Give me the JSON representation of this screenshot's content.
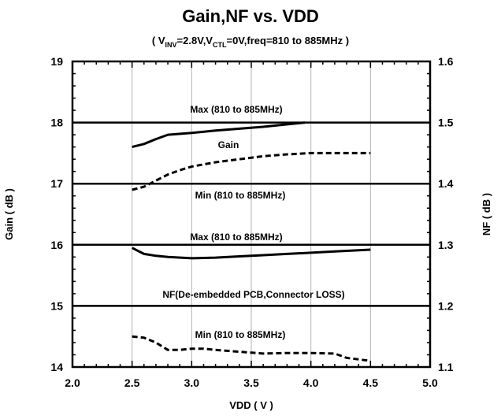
{
  "chart_data": {
    "type": "line",
    "title": "Gain,NF vs. VDD",
    "subtitle": {
      "open": "( V",
      "sub1": "INV",
      "mid": "=2.8V,V",
      "sub2": "CTL",
      "close": "=0V,freq=810 to 885MHz )"
    },
    "xlabel": "VDD ( V )",
    "ylabel_left": "Gain ( dB )",
    "ylabel_right": "NF ( dB )",
    "xlim": [
      2.0,
      5.0
    ],
    "ylim_left": [
      14,
      19
    ],
    "ylim_right": [
      1.1,
      1.6
    ],
    "xticks": [
      "2.0",
      "2.5",
      "3.0",
      "3.5",
      "4.0",
      "4.5",
      "5.0"
    ],
    "yticks_left": [
      "14",
      "15",
      "16",
      "17",
      "18",
      "19"
    ],
    "yticks_right": [
      "1.1",
      "1.2",
      "1.3",
      "1.4",
      "1.5",
      "1.6"
    ],
    "grid": "vertical",
    "annotations": {
      "gain_max": "Max (810 to 885MHz)",
      "gain": "Gain",
      "gain_min": "Min (810 to 885MHz)",
      "nf_max": "Max (810 to 885MHz)",
      "nf": "NF(De-embedded PCB,Connector LOSS)",
      "nf_min": "Min (810 to 885MHz)"
    },
    "reference_lines": [
      {
        "axis": "left",
        "y": 18.0
      },
      {
        "axis": "left",
        "y": 17.0
      },
      {
        "axis": "left",
        "y": 16.0
      },
      {
        "axis": "left",
        "y": 15.0
      }
    ],
    "series": [
      {
        "axis": "left",
        "style": "solid",
        "x": [
          2.5,
          2.6,
          2.7,
          2.8,
          3.0,
          3.2,
          3.4,
          3.6,
          3.8,
          3.95
        ],
        "y": [
          17.6,
          17.65,
          17.73,
          17.8,
          17.83,
          17.87,
          17.9,
          17.93,
          17.97,
          18.0
        ]
      },
      {
        "axis": "left",
        "style": "dashed",
        "x": [
          2.5,
          2.6,
          2.7,
          2.8,
          2.9,
          3.0,
          3.2,
          3.4,
          3.6,
          3.8,
          4.0,
          4.2,
          4.5
        ],
        "y": [
          16.9,
          16.95,
          17.05,
          17.15,
          17.22,
          17.28,
          17.35,
          17.4,
          17.45,
          17.48,
          17.5,
          17.5,
          17.5
        ]
      },
      {
        "axis": "right",
        "style": "solid",
        "x": [
          2.5,
          2.55,
          2.6,
          2.7,
          2.8,
          3.0,
          3.2,
          3.4,
          3.6,
          3.8,
          4.0,
          4.2,
          4.5
        ],
        "y": [
          1.295,
          1.29,
          1.285,
          1.282,
          1.28,
          1.278,
          1.279,
          1.281,
          1.283,
          1.285,
          1.287,
          1.289,
          1.292
        ]
      },
      {
        "axis": "right",
        "style": "dashed",
        "x": [
          2.5,
          2.6,
          2.7,
          2.8,
          2.9,
          3.0,
          3.1,
          3.2,
          3.4,
          3.6,
          3.8,
          4.0,
          4.2,
          4.3,
          4.5
        ],
        "y": [
          1.15,
          1.148,
          1.14,
          1.128,
          1.128,
          1.13,
          1.13,
          1.128,
          1.125,
          1.122,
          1.123,
          1.123,
          1.122,
          1.115,
          1.11
        ]
      }
    ]
  }
}
